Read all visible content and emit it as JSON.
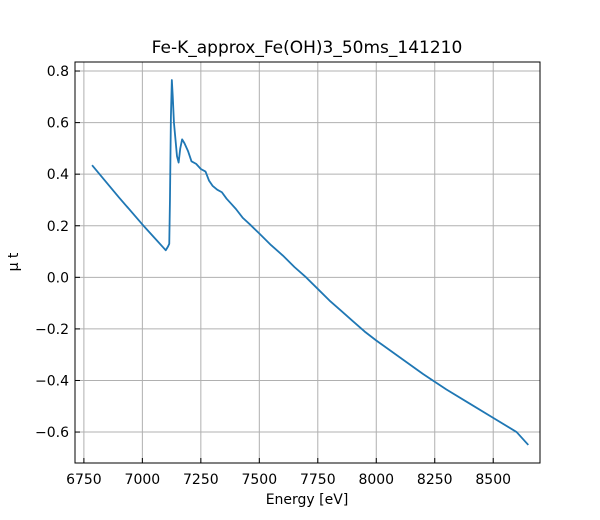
{
  "chart_data": {
    "type": "line",
    "title": "Fe-K_approx_Fe(OH)3_50ms_141210",
    "xlabel": "Energy [eV]",
    "ylabel": "μ t",
    "xlim": [
      6712,
      8700
    ],
    "ylim": [
      -0.72,
      0.835
    ],
    "xticks": [
      6750,
      7000,
      7250,
      7500,
      7750,
      8000,
      8250,
      8500
    ],
    "yticks": [
      -0.6,
      -0.4,
      -0.2,
      0.0,
      0.2,
      0.4,
      0.6,
      0.8
    ],
    "xtick_labels": [
      "6750",
      "7000",
      "7250",
      "7500",
      "7750",
      "8000",
      "8250",
      "8500"
    ],
    "ytick_labels": [
      "−0.6",
      "−0.4",
      "−0.2",
      "0.0",
      "0.2",
      "0.4",
      "0.6",
      "0.8"
    ],
    "grid": true,
    "colors": {
      "line": "#1f77b4"
    },
    "series": [
      {
        "x": [
          6785,
          6900,
          7000,
          7050,
          7090,
          7100,
          7110,
          7115,
          7118,
          7122,
          7126,
          7130,
          7135,
          7140,
          7148,
          7155,
          7162,
          7170,
          7180,
          7195,
          7210,
          7230,
          7250,
          7270,
          7285,
          7300,
          7320,
          7340,
          7360,
          7380,
          7400,
          7430,
          7460,
          7500,
          7550,
          7600,
          7650,
          7700,
          7750,
          7800,
          7850,
          7900,
          7950,
          8000,
          8100,
          8200,
          8250,
          8300,
          8400,
          8500,
          8600,
          8650
        ],
        "y": [
          0.435,
          0.31,
          0.205,
          0.155,
          0.115,
          0.105,
          0.12,
          0.13,
          0.3,
          0.62,
          0.765,
          0.7,
          0.6,
          0.55,
          0.47,
          0.445,
          0.5,
          0.535,
          0.52,
          0.49,
          0.45,
          0.44,
          0.42,
          0.41,
          0.375,
          0.355,
          0.34,
          0.33,
          0.305,
          0.285,
          0.265,
          0.23,
          0.205,
          0.17,
          0.125,
          0.085,
          0.04,
          0.0,
          -0.045,
          -0.09,
          -0.13,
          -0.17,
          -0.21,
          -0.245,
          -0.31,
          -0.375,
          -0.405,
          -0.435,
          -0.49,
          -0.545,
          -0.6,
          -0.65
        ]
      }
    ]
  }
}
